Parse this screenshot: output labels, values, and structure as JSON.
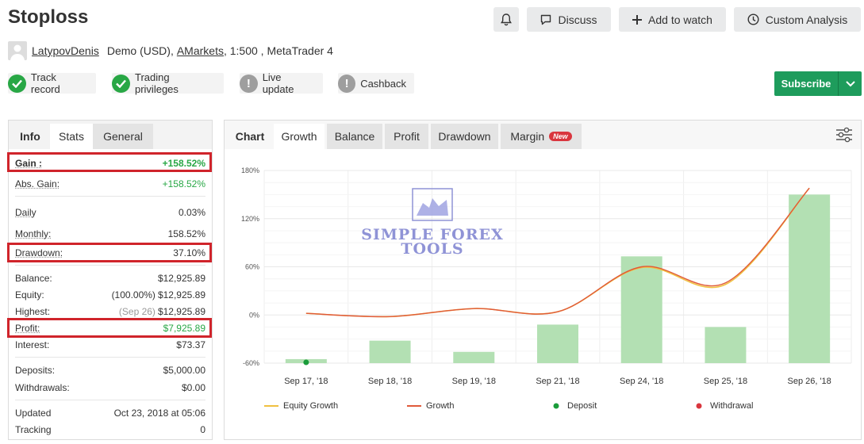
{
  "header": {
    "title": "Stoploss",
    "discuss_label": "Discuss",
    "watch_label": "Add to watch",
    "analysis_label": "Custom Analysis"
  },
  "meta": {
    "user": "LatypovDenis",
    "account": "Demo (USD),",
    "broker": "AMarkets",
    "details": ", 1:500 , MetaTrader 4"
  },
  "badges": [
    {
      "label": "Track record",
      "status": "verified"
    },
    {
      "label": "Trading privileges",
      "status": "verified"
    },
    {
      "label": "Live update",
      "status": "warning"
    },
    {
      "label": "Cashback",
      "status": "warning"
    }
  ],
  "subscribe": {
    "label": "Subscribe"
  },
  "left_tabs": {
    "info": "Info",
    "stats": "Stats",
    "general": "General"
  },
  "stats": {
    "gain": {
      "label": "Gain :",
      "value": "+158.52%"
    },
    "abs_gain": {
      "label": "Abs. Gain:",
      "value": "+158.52%"
    },
    "daily": {
      "label": "Daily",
      "value": "0.03%"
    },
    "monthly": {
      "label": "Monthly:",
      "value": "158.52%"
    },
    "drawdown": {
      "label": "Drawdown:",
      "value": "37.10%"
    },
    "balance": {
      "label": "Balance:",
      "value": "$12,925.89"
    },
    "equity": {
      "label": "Equity:",
      "note": "(100.00%)",
      "value": "$12,925.89"
    },
    "highest": {
      "label": "Highest:",
      "note": "(Sep 26)",
      "value": "$12,925.89"
    },
    "profit": {
      "label": "Profit:",
      "value": "$7,925.89"
    },
    "interest": {
      "label": "Interest:",
      "value": "$73.37"
    },
    "deposits": {
      "label": "Deposits:",
      "value": "$5,000.00"
    },
    "withdrawals": {
      "label": "Withdrawals:",
      "value": "$0.00"
    },
    "updated": {
      "label": "Updated",
      "value": "Oct 23, 2018 at 05:06"
    },
    "tracking": {
      "label": "Tracking",
      "value": "0"
    }
  },
  "chart_tabs": {
    "chart": "Chart",
    "growth": "Growth",
    "balance": "Balance",
    "profit": "Profit",
    "drawdown": "Drawdown",
    "margin": "Margin",
    "new_badge": "New"
  },
  "watermark": {
    "line1": "SIMPLE FOREX",
    "line2": "TOOLS"
  },
  "colors": {
    "accent_green": "#28a745",
    "highlight_red": "#d0242b",
    "bar_green": "#b3e0b3",
    "growth_line": "#e05a3a",
    "equity_line": "#f0c040"
  },
  "chart_data": {
    "type": "bar",
    "categories": [
      "Sep 17, '18",
      "Sep 18, '18",
      "Sep 19, '18",
      "Sep 21, '18",
      "Sep 24, '18",
      "Sep 25, '18",
      "Sep 26, '18"
    ],
    "y_ticks": [
      "180%",
      "120%",
      "60%",
      "0%",
      "-60%"
    ],
    "ylim": [
      -60,
      180
    ],
    "series": [
      {
        "name": "Growth",
        "kind": "bar",
        "values": [
          -55,
          -32,
          -46,
          -12,
          73,
          -15,
          150
        ]
      },
      {
        "name": "Growth",
        "kind": "line",
        "values": [
          2,
          -2,
          8,
          4,
          60,
          40,
          158
        ]
      },
      {
        "name": "Equity Growth",
        "kind": "line",
        "values": [
          2,
          -2,
          8,
          4,
          59,
          38,
          158
        ]
      }
    ],
    "deposit_points": [
      {
        "category": "Sep 17, '18",
        "value": -59
      }
    ],
    "legend": [
      "Equity Growth",
      "Growth",
      "Deposit",
      "Withdrawal"
    ],
    "legend_position": "bottom",
    "grid": true
  }
}
